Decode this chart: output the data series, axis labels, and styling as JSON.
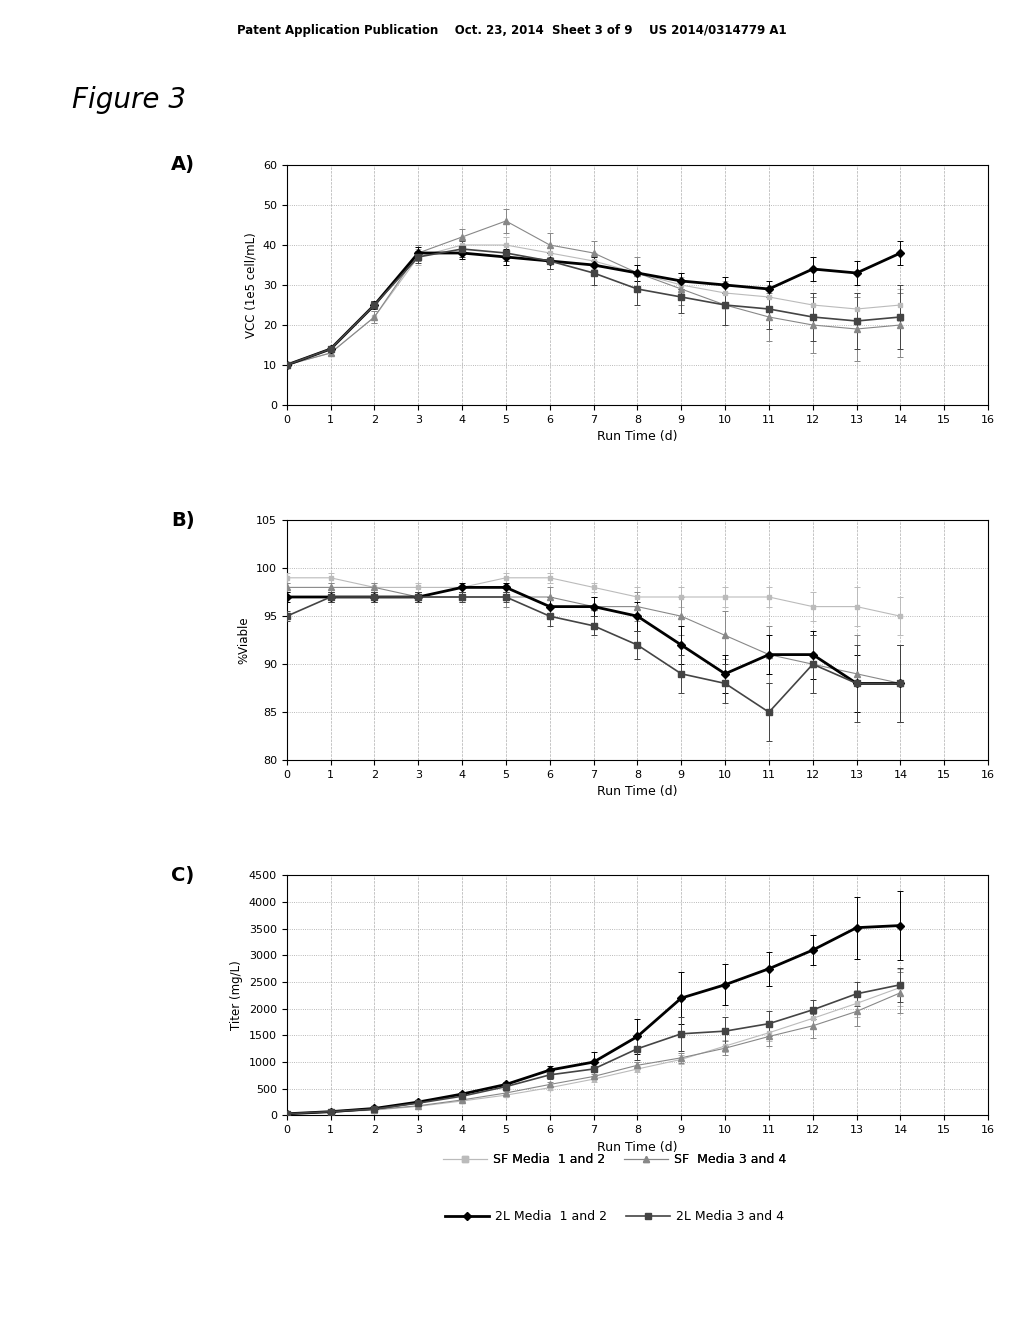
{
  "header_text": "Patent Application Publication    Oct. 23, 2014  Sheet 3 of 9    US 2014/0314779 A1",
  "fig_label": "Figure 3",
  "background_color": "#ffffff",
  "panel_A": {
    "label": "A)",
    "ylabel": "VCC (1e5 cell/mL)",
    "xlabel": "Run Time (d)",
    "ylim": [
      0,
      60
    ],
    "yticks": [
      0,
      10,
      20,
      30,
      40,
      50,
      60
    ],
    "xlim": [
      0,
      16
    ],
    "xticks": [
      0,
      1,
      2,
      3,
      4,
      5,
      6,
      7,
      8,
      9,
      10,
      11,
      12,
      13,
      14,
      15,
      16
    ],
    "sf12_x": [
      0,
      1,
      2,
      3,
      4,
      5,
      6,
      7,
      8,
      9,
      10,
      11,
      12,
      13,
      14
    ],
    "sf12_y": [
      10,
      13,
      22,
      37,
      40,
      40,
      38,
      36,
      33,
      30,
      28,
      27,
      25,
      24,
      25
    ],
    "sf12_ye": [
      0.3,
      0.5,
      1.5,
      2,
      2,
      2,
      2,
      2,
      2,
      2,
      3,
      3,
      3,
      4,
      4
    ],
    "sf34_x": [
      0,
      1,
      2,
      3,
      4,
      5,
      6,
      7,
      8,
      9,
      10,
      11,
      12,
      13,
      14
    ],
    "sf34_y": [
      10,
      13,
      22,
      38,
      42,
      46,
      40,
      38,
      33,
      29,
      25,
      22,
      20,
      19,
      20
    ],
    "sf34_ye": [
      0.3,
      0.5,
      1.5,
      2,
      2,
      3,
      3,
      3,
      4,
      4,
      5,
      6,
      7,
      8,
      8
    ],
    "2l12_x": [
      0,
      1,
      2,
      3,
      4,
      5,
      6,
      7,
      8,
      9,
      10,
      11,
      12,
      13,
      14
    ],
    "2l12_y": [
      10,
      14,
      25,
      38,
      38,
      37,
      36,
      35,
      33,
      31,
      30,
      29,
      34,
      33,
      38
    ],
    "2l12_ye": [
      0.3,
      0.5,
      1,
      1.5,
      1.5,
      2,
      2,
      2,
      2,
      2,
      2,
      2,
      3,
      3,
      3
    ],
    "2l34_x": [
      0,
      1,
      2,
      3,
      4,
      5,
      6,
      7,
      8,
      9,
      10,
      11,
      12,
      13,
      14
    ],
    "2l34_y": [
      10,
      14,
      25,
      37,
      39,
      38,
      36,
      33,
      29,
      27,
      25,
      24,
      22,
      21,
      22
    ],
    "2l34_ye": [
      0.3,
      0.5,
      1,
      1.5,
      2,
      2,
      2,
      3,
      4,
      4,
      5,
      5,
      6,
      7,
      8
    ]
  },
  "panel_B": {
    "label": "B)",
    "ylabel": "%Viable",
    "xlabel": "Run Time (d)",
    "ylim": [
      80,
      105
    ],
    "yticks": [
      80,
      85,
      90,
      95,
      100,
      105
    ],
    "xlim": [
      0,
      16
    ],
    "xticks": [
      0,
      1,
      2,
      3,
      4,
      5,
      6,
      7,
      8,
      9,
      10,
      11,
      12,
      13,
      14,
      15,
      16
    ],
    "sf12_x": [
      0,
      1,
      2,
      3,
      4,
      5,
      6,
      7,
      8,
      9,
      10,
      11,
      12,
      13,
      14
    ],
    "sf12_y": [
      99,
      99,
      98,
      98,
      98,
      99,
      99,
      98,
      97,
      97,
      97,
      97,
      96,
      96,
      95
    ],
    "sf12_ye": [
      0.5,
      0.5,
      0.5,
      0.5,
      0.5,
      0.5,
      0.5,
      0.5,
      1,
      1,
      1,
      1,
      1.5,
      2,
      2
    ],
    "sf34_x": [
      0,
      1,
      2,
      3,
      4,
      5,
      6,
      7,
      8,
      9,
      10,
      11,
      12,
      13,
      14
    ],
    "sf34_y": [
      98,
      98,
      98,
      97,
      97,
      97,
      97,
      96,
      96,
      95,
      93,
      91,
      90,
      89,
      88
    ],
    "sf34_ye": [
      0.5,
      0.5,
      0.5,
      0.5,
      0.5,
      1,
      1,
      1,
      1.5,
      2,
      2.5,
      3,
      3,
      4,
      4
    ],
    "2l12_x": [
      0,
      1,
      2,
      3,
      4,
      5,
      6,
      7,
      8,
      9,
      10,
      11,
      12,
      13,
      14
    ],
    "2l12_y": [
      97,
      97,
      97,
      97,
      98,
      98,
      96,
      96,
      95,
      92,
      89,
      91,
      91,
      88,
      88
    ],
    "2l12_ye": [
      0.5,
      0.5,
      0.5,
      0.5,
      0.5,
      0.5,
      1,
      1,
      1.5,
      2,
      2,
      2,
      2.5,
      3,
      4
    ],
    "2l34_x": [
      0,
      1,
      2,
      3,
      4,
      5,
      6,
      7,
      8,
      9,
      10,
      11,
      12,
      13,
      14
    ],
    "2l34_y": [
      95,
      97,
      97,
      97,
      97,
      97,
      95,
      94,
      92,
      89,
      88,
      85,
      90,
      88,
      88
    ],
    "2l34_ye": [
      0.5,
      0.5,
      0.5,
      0.5,
      0.5,
      0.5,
      1,
      1,
      1.5,
      2,
      2,
      3,
      3,
      4,
      4
    ]
  },
  "panel_C": {
    "label": "C)",
    "ylabel": "Titer (mg/L)",
    "xlabel": "Run Time (d)",
    "ylim": [
      0,
      4500
    ],
    "yticks": [
      0,
      500,
      1000,
      1500,
      2000,
      2500,
      3000,
      3500,
      4000,
      4500
    ],
    "xlim": [
      0,
      16
    ],
    "xticks": [
      0,
      1,
      2,
      3,
      4,
      5,
      6,
      7,
      8,
      9,
      10,
      11,
      12,
      13,
      14,
      15,
      16
    ],
    "sf12_x": [
      0,
      1,
      2,
      3,
      4,
      5,
      6,
      7,
      8,
      9,
      10,
      11,
      12,
      13,
      14
    ],
    "sf12_y": [
      30,
      60,
      100,
      170,
      270,
      380,
      520,
      680,
      870,
      1050,
      1300,
      1550,
      1820,
      2100,
      2400
    ],
    "sf12_ye": [
      5,
      8,
      12,
      18,
      22,
      28,
      35,
      45,
      55,
      80,
      120,
      160,
      200,
      250,
      350
    ],
    "sf34_x": [
      0,
      1,
      2,
      3,
      4,
      5,
      6,
      7,
      8,
      9,
      10,
      11,
      12,
      13,
      14
    ],
    "sf34_y": [
      30,
      60,
      110,
      180,
      290,
      420,
      580,
      730,
      940,
      1080,
      1260,
      1480,
      1680,
      1950,
      2300
    ],
    "sf34_ye": [
      5,
      8,
      12,
      18,
      25,
      35,
      45,
      55,
      70,
      90,
      130,
      175,
      220,
      280,
      380
    ],
    "2l12_x": [
      0,
      1,
      2,
      3,
      4,
      5,
      6,
      7,
      8,
      9,
      10,
      11,
      12,
      13,
      14
    ],
    "2l12_y": [
      30,
      70,
      130,
      250,
      400,
      580,
      850,
      1000,
      1480,
      2200,
      2450,
      2750,
      3100,
      3520,
      3560
    ],
    "2l12_ye": [
      5,
      10,
      15,
      25,
      35,
      45,
      80,
      180,
      320,
      480,
      380,
      320,
      280,
      580,
      650
    ],
    "2l34_x": [
      0,
      1,
      2,
      3,
      4,
      5,
      6,
      7,
      8,
      9,
      10,
      11,
      12,
      13,
      14
    ],
    "2l34_y": [
      30,
      70,
      120,
      230,
      360,
      540,
      760,
      870,
      1250,
      1530,
      1580,
      1720,
      1980,
      2280,
      2450
    ],
    "2l34_ye": [
      5,
      10,
      15,
      22,
      30,
      38,
      70,
      130,
      220,
      320,
      270,
      230,
      180,
      230,
      320
    ]
  },
  "legend": {
    "sf12_label": "SF Media  1 and 2",
    "sf34_label": "SF  Media 3 and 4",
    "2l12_label": "2L Media  1 and 2",
    "2l34_label": "2L Media 3 and 4"
  },
  "colors": {
    "sf12": "#bbbbbb",
    "sf34": "#888888",
    "2l12": "#000000",
    "2l34": "#444444"
  }
}
